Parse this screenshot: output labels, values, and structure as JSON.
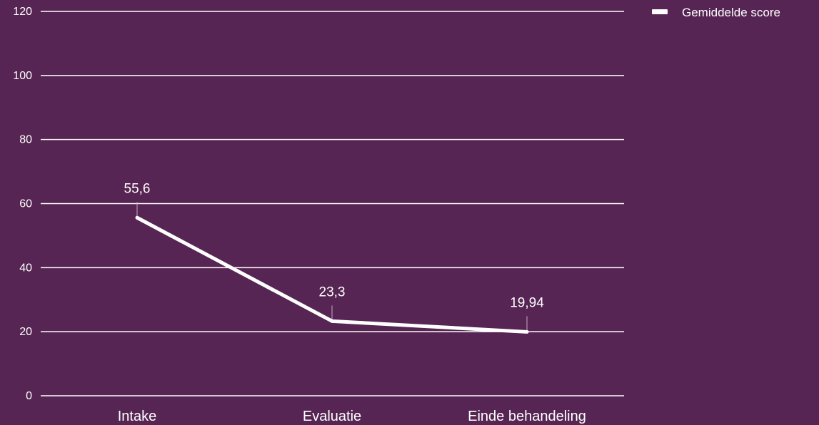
{
  "chart_data": {
    "type": "line",
    "categories": [
      "Intake",
      "Evaluatie",
      "Einde behandeling"
    ],
    "series": [
      {
        "name": "Gemiddelde score",
        "values": [
          55.6,
          23.3,
          19.94
        ]
      }
    ],
    "data_labels": [
      "55,6",
      "23,3",
      "19,94"
    ],
    "y_ticks": [
      "0",
      "20",
      "40",
      "60",
      "80",
      "100",
      "120"
    ],
    "ylim": [
      0,
      120
    ],
    "grid": true,
    "legend_position": "top-right",
    "colors": {
      "background": "#562553",
      "line": "#ffffff",
      "grid": "#ffffff",
      "leader": "#c9a9c6"
    }
  }
}
